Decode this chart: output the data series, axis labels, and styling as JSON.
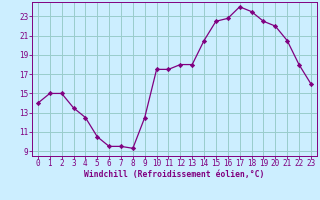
{
  "x": [
    0,
    1,
    2,
    3,
    4,
    5,
    6,
    7,
    8,
    9,
    10,
    11,
    12,
    13,
    14,
    15,
    16,
    17,
    18,
    19,
    20,
    21,
    22,
    23
  ],
  "y": [
    14.0,
    15.0,
    15.0,
    13.5,
    12.5,
    10.5,
    9.5,
    9.5,
    9.3,
    12.5,
    17.5,
    17.5,
    18.0,
    18.0,
    20.5,
    22.5,
    22.8,
    24.0,
    23.5,
    22.5,
    22.0,
    20.5,
    18.0,
    16.0
  ],
  "line_color": "#800080",
  "marker": "D",
  "marker_size": 2.2,
  "bg_color": "#cceeff",
  "grid_color": "#99cccc",
  "xlabel": "Windchill (Refroidissement éolien,°C)",
  "xlabel_color": "#800080",
  "tick_color": "#800080",
  "spine_color": "#800080",
  "ylim": [
    8.5,
    24.5
  ],
  "xlim": [
    -0.5,
    23.5
  ],
  "yticks": [
    9,
    11,
    13,
    15,
    17,
    19,
    21,
    23
  ],
  "xticks": [
    0,
    1,
    2,
    3,
    4,
    5,
    6,
    7,
    8,
    9,
    10,
    11,
    12,
    13,
    14,
    15,
    16,
    17,
    18,
    19,
    20,
    21,
    22,
    23
  ],
  "xlabel_fontsize": 5.8,
  "tick_fontsize": 5.5,
  "xlabel_fontweight": "bold"
}
